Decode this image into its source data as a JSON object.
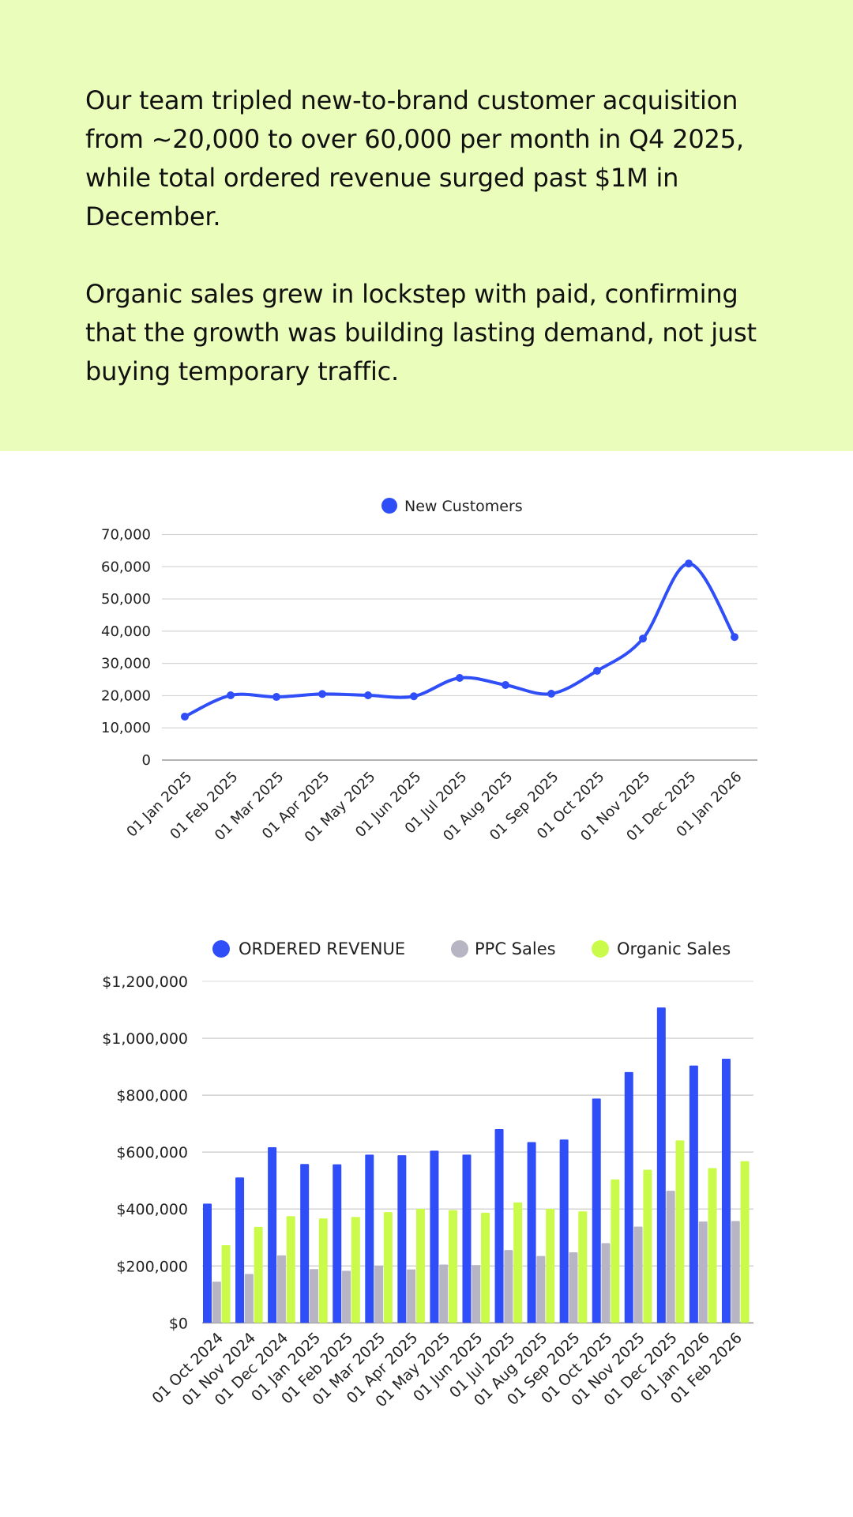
{
  "hero": {
    "paragraphs": [
      "Our team tripled new-to-brand customer acquisition from ~20,000 to over 60,000 per month in Q4 2025, while total ordered revenue surged past $1M in December.",
      "Organic sales grew in lockstep with paid, confirming that the growth was building lasting demand, not just buying temporary traffic."
    ],
    "background": "#EBFDBB"
  },
  "chart_data": [
    {
      "type": "line",
      "title": "",
      "xlabel": "",
      "ylabel": "",
      "legend": [
        "New Customers"
      ],
      "legend_position": "top-center",
      "grid": true,
      "ylim": [
        0,
        70000
      ],
      "yticks": [
        0,
        10000,
        20000,
        30000,
        40000,
        50000,
        60000,
        70000
      ],
      "ytick_labels": [
        "0",
        "10,000",
        "20,000",
        "30,000",
        "40,000",
        "50,000",
        "60,000",
        "70,000"
      ],
      "categories": [
        "01 Jan 2025",
        "01 Feb 2025",
        "01 Mar 2025",
        "01 Apr 2025",
        "01 May 2025",
        "01 Jun 2025",
        "01 Jul 2025",
        "01 Aug 2025",
        "01 Sep 2025",
        "01 Oct 2025",
        "01 Nov 2025",
        "01 Dec 2025",
        "01 Jan 2026"
      ],
      "series": [
        {
          "name": "New Customers",
          "color": "#2F4EF7",
          "values": [
            13500,
            20100,
            19600,
            20500,
            20100,
            19800,
            25500,
            23300,
            20600,
            27700,
            37700,
            61000,
            38200
          ]
        }
      ]
    },
    {
      "type": "bar",
      "title": "",
      "xlabel": "",
      "ylabel": "",
      "legend": [
        "ORDERED REVENUE",
        "PPC Sales",
        "Organic Sales"
      ],
      "legend_position": "top-center",
      "grid": true,
      "ylim": [
        0,
        1200000
      ],
      "yticks": [
        0,
        200000,
        400000,
        600000,
        800000,
        1000000,
        1200000
      ],
      "ytick_labels": [
        "$0",
        "$200,000",
        "$400,000",
        "$600,000",
        "$800,000",
        "$1,000,000",
        "$1,200,000"
      ],
      "categories": [
        "01 Oct 2024",
        "01 Nov 2024",
        "01 Dec 2024",
        "01 Jan 2025",
        "01 Feb 2025",
        "01 Mar 2025",
        "01 Apr 2025",
        "01 May 2025",
        "01 Jun 2025",
        "01 Jul 2025",
        "01 Aug 2025",
        "01 Sep 2025",
        "01 Oct 2025",
        "01 Nov 2025",
        "01 Dec 2025",
        "01 Jan 2026",
        "01 Feb 2026"
      ],
      "series": [
        {
          "name": "ORDERED REVENUE",
          "color": "#2F4EF7",
          "values": [
            419000,
            511000,
            617000,
            558000,
            557000,
            591000,
            589000,
            605000,
            591000,
            681000,
            635000,
            644000,
            788000,
            881000,
            1108000,
            904000,
            928000
          ]
        },
        {
          "name": "PPC Sales",
          "color": "#B7B5C3",
          "values": [
            145000,
            172000,
            237000,
            189000,
            183000,
            201000,
            188000,
            205000,
            203000,
            256000,
            235000,
            248000,
            280000,
            338000,
            464000,
            356000,
            358000
          ]
        },
        {
          "name": "Organic Sales",
          "color": "#CBFB4A",
          "values": [
            273000,
            337000,
            375000,
            367000,
            372000,
            389000,
            401000,
            396000,
            387000,
            423000,
            401000,
            392000,
            504000,
            538000,
            641000,
            544000,
            568000
          ]
        }
      ]
    }
  ]
}
